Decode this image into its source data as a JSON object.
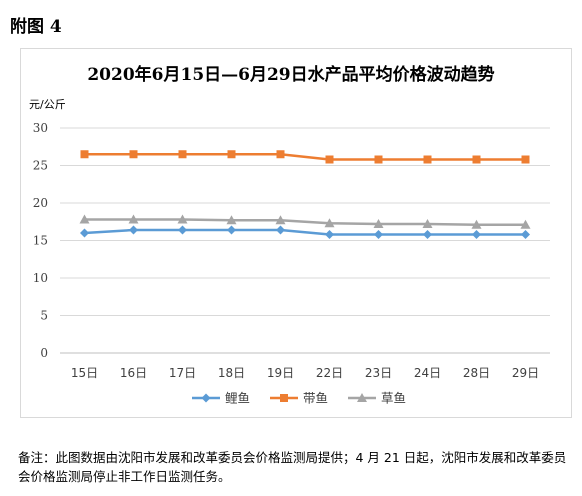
{
  "figure_label": "附图 4",
  "title": "2020年6月15日—6月29日水产品平均价格波动趋势",
  "unit": "元/公斤",
  "footnote": "备注：此图数据由沈阳市发展和改革委员会价格监测局提供；4 月 21 日起，沈阳市发展和改革委员会价格监测局停止非工作日监测任务。",
  "chart_data": {
    "type": "line",
    "title": "2020年6月15日—6月29日水产品平均价格波动趋势",
    "ylabel": "元/公斤",
    "xlabel": "",
    "categories": [
      "15日",
      "16日",
      "17日",
      "18日",
      "19日",
      "22日",
      "23日",
      "24日",
      "28日",
      "29日"
    ],
    "ylim": [
      0,
      30
    ],
    "yticks": [
      0,
      5,
      10,
      15,
      20,
      25,
      30
    ],
    "grid": true,
    "legend_position": "bottom",
    "series": [
      {
        "name": "鲤鱼",
        "color": "#5b9bd5",
        "marker": "diamond",
        "values": [
          16.0,
          16.4,
          16.4,
          16.4,
          16.4,
          15.8,
          15.8,
          15.8,
          15.8,
          15.8
        ]
      },
      {
        "name": "带鱼",
        "color": "#ed7d31",
        "marker": "square",
        "values": [
          26.5,
          26.5,
          26.5,
          26.5,
          26.5,
          25.8,
          25.8,
          25.8,
          25.8,
          25.8
        ]
      },
      {
        "name": "草鱼",
        "color": "#a5a5a5",
        "marker": "triangle",
        "values": [
          17.8,
          17.8,
          17.8,
          17.7,
          17.7,
          17.3,
          17.2,
          17.2,
          17.1,
          17.1
        ]
      }
    ]
  }
}
